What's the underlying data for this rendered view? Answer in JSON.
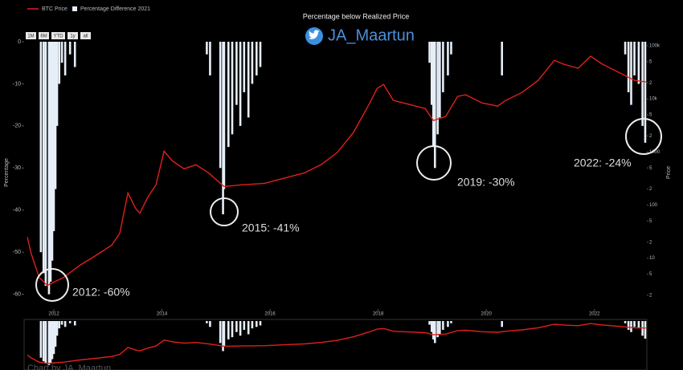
{
  "chart_data": {
    "type": "line",
    "title": "Percentage below Realized Price",
    "handle": "JA_Maartun",
    "credit": "Chart by JA_Maartun",
    "range_buttons": [
      "1M",
      "6M",
      "YTD",
      "1y",
      "all"
    ],
    "ylabel": "Percentage",
    "y2label": "Price",
    "xlim": [
      2011.45,
      2022.97
    ],
    "xticks": [
      2012,
      2014,
      2016,
      2018,
      2020,
      2022
    ],
    "ylim": [
      -63.5,
      0
    ],
    "yticks": [
      0,
      -10,
      -20,
      -30,
      -40,
      -50,
      -60
    ],
    "y2scale": "log",
    "y2lim": [
      1.1,
      119000
    ],
    "y2ticks": [
      {
        "value": 2,
        "label": "2"
      },
      {
        "value": 5,
        "label": "5"
      },
      10,
      {
        "value": 20,
        "label": "2"
      },
      {
        "value": 50,
        "label": "5"
      },
      100,
      {
        "value": 200,
        "label": "2"
      },
      {
        "value": 500,
        "label": "5"
      },
      1000,
      {
        "value": 2000,
        "label": "2"
      },
      {
        "value": 5000,
        "label": "5"
      },
      {
        "value": 10000,
        "label": "10k"
      },
      {
        "value": 20000,
        "label": "2"
      },
      {
        "value": 50000,
        "label": "5"
      },
      {
        "value": 100000,
        "label": "100k"
      }
    ],
    "legend": "top-left",
    "series": [
      {
        "name": "BTC Price",
        "color": "#e0201b",
        "axis": "y2",
        "type": "line",
        "x": [
          2011.51,
          2011.58,
          2011.73,
          2011.88,
          2012.03,
          2012.18,
          2012.48,
          2012.77,
          2013.07,
          2013.22,
          2013.37,
          2013.52,
          2013.59,
          2013.74,
          2013.89,
          2014.04,
          2014.19,
          2014.41,
          2014.63,
          2014.86,
          2015.15,
          2015.45,
          2015.9,
          2016.35,
          2016.64,
          2016.94,
          2017.24,
          2017.54,
          2017.83,
          2017.98,
          2018.1,
          2018.28,
          2018.58,
          2018.87,
          2019.02,
          2019.25,
          2019.47,
          2019.62,
          2019.92,
          2020.21,
          2020.36,
          2020.66,
          2020.96,
          2021.26,
          2021.43,
          2021.7,
          2021.93,
          2022.15,
          2022.45,
          2022.74,
          2022.95
        ],
        "values": [
          24.8,
          12.3,
          4.3,
          3.05,
          3.64,
          4.3,
          7.3,
          11.1,
          17.5,
          29.5,
          169,
          84,
          70,
          142,
          239,
          1035,
          681,
          481,
          573,
          404,
          223,
          239,
          256,
          339,
          404,
          573,
          966,
          2310,
          7830,
          15700,
          18700,
          9330,
          7830,
          6580,
          3900,
          4650,
          11100,
          11900,
          8400,
          7300,
          9330,
          13200,
          22300,
          53300,
          44900,
          37700,
          63600,
          44900,
          31600,
          22300,
          20800
        ]
      },
      {
        "name": "Percentage Difference 2021",
        "color": "#e6eef8",
        "type": "bar",
        "x": [
          2011.76,
          2011.81,
          2011.85,
          2011.91,
          2011.94,
          2011.97,
          2012.0,
          2012.03,
          2012.06,
          2012.1,
          2012.15,
          2012.21,
          2012.3,
          2012.39,
          2014.83,
          2014.89,
          2015.08,
          2015.13,
          2015.15,
          2015.23,
          2015.3,
          2015.38,
          2015.45,
          2015.52,
          2015.6,
          2015.67,
          2015.75,
          2015.82,
          2018.95,
          2018.99,
          2019.02,
          2019.05,
          2019.1,
          2019.14,
          2019.2,
          2019.29,
          2019.35,
          2020.29,
          2022.57,
          2022.63,
          2022.68,
          2022.74,
          2022.82,
          2022.89,
          2022.94
        ],
        "values": [
          -50,
          -55,
          -58,
          -60,
          -57,
          -52,
          -45,
          -35,
          -20,
          -10,
          -5,
          -8,
          -3,
          -6,
          -3,
          -8,
          -30,
          -41,
          -35,
          -25,
          -22,
          -15,
          -20,
          -12,
          -18,
          -10,
          -8,
          -6,
          -5,
          -15,
          -25,
          -30,
          -22,
          -18,
          -12,
          -8,
          -3,
          -8,
          -3,
          -12,
          -15,
          -8,
          -10,
          -20,
          -24
        ]
      }
    ],
    "annotations": [
      "2012: -60%",
      "2015: -41%",
      "2019: -30%",
      "2022: -24%"
    ]
  }
}
